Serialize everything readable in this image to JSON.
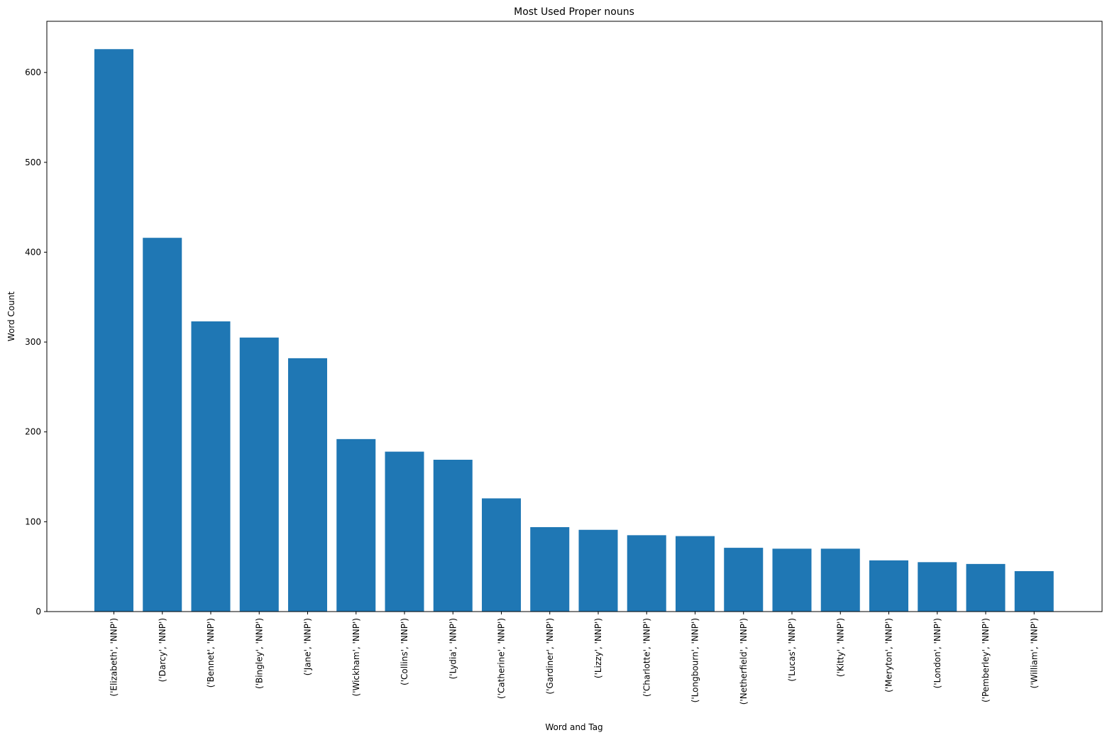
{
  "chart_data": {
    "type": "bar",
    "title": "Most Used Proper nouns",
    "xlabel": "Word and Tag",
    "ylabel": "Word Count",
    "ylim": [
      0,
      657
    ],
    "yticks": [
      0,
      100,
      200,
      300,
      400,
      500,
      600
    ],
    "grid": false,
    "bar_color": "#1f77b4",
    "categories": [
      "('Elizabeth', 'NNP')",
      "('Darcy', 'NNP')",
      "('Bennet', 'NNP')",
      "('Bingley', 'NNP')",
      "('Jane', 'NNP')",
      "('Wickham', 'NNP')",
      "('Collins', 'NNP')",
      "('Lydia', 'NNP')",
      "('Catherine', 'NNP')",
      "('Gardiner', 'NNP')",
      "('Lizzy', 'NNP')",
      "('Charlotte', 'NNP')",
      "('Longbourn', 'NNP')",
      "('Netherfield', 'NNP')",
      "('Lucas', 'NNP')",
      "('Kitty', 'NNP')",
      "('Meryton', 'NNP')",
      "('London', 'NNP')",
      "('Pemberley', 'NNP')",
      "('William', 'NNP')"
    ],
    "values": [
      626,
      416,
      323,
      305,
      282,
      192,
      178,
      169,
      126,
      94,
      91,
      85,
      84,
      71,
      70,
      70,
      57,
      55,
      53,
      45
    ]
  }
}
